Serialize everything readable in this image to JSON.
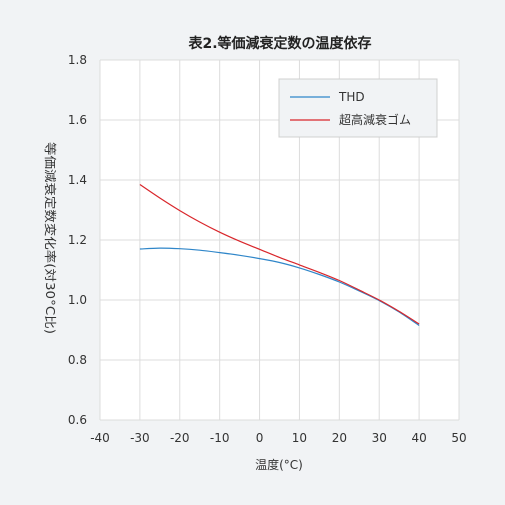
{
  "colors": {
    "background": "#f1f3f5",
    "plot_background": "#ffffff",
    "grid": "#dcdcdc",
    "THD": "#2f86c9",
    "rubber": "#d9262b"
  },
  "chart_data": {
    "type": "line",
    "title": "表2.等価減衰定数の温度依存",
    "xlabel": "温度(°C)",
    "ylabel": "等価減衰定数変化率(対30°C比)",
    "xlim": [
      -40,
      50
    ],
    "ylim": [
      0.6,
      1.8
    ],
    "xticks": [
      "-40",
      "-30",
      "-20",
      "-10",
      "0",
      "10",
      "20",
      "30",
      "40",
      "50"
    ],
    "yticks": [
      "0.6",
      "0.8",
      "1.0",
      "1.2",
      "1.4",
      "1.6",
      "1.8"
    ],
    "grid": true,
    "legend_position": "top-right",
    "series": [
      {
        "name": "THD",
        "color_key": "THD",
        "x": [
          -30,
          -25,
          -20,
          -15,
          -10,
          -5,
          0,
          5,
          10,
          15,
          20,
          25,
          30,
          35,
          40
        ],
        "y": [
          1.17,
          1.173,
          1.171,
          1.166,
          1.158,
          1.149,
          1.138,
          1.125,
          1.107,
          1.085,
          1.06,
          1.03,
          0.998,
          0.96,
          0.915
        ]
      },
      {
        "name": "超高減衰ゴム",
        "color_key": "rubber",
        "x": [
          -30,
          -25,
          -20,
          -15,
          -10,
          -5,
          0,
          5,
          10,
          15,
          20,
          25,
          30,
          35,
          40
        ],
        "y": [
          1.385,
          1.34,
          1.298,
          1.26,
          1.226,
          1.196,
          1.169,
          1.142,
          1.117,
          1.092,
          1.065,
          1.033,
          1.0,
          0.962,
          0.92
        ]
      }
    ]
  }
}
